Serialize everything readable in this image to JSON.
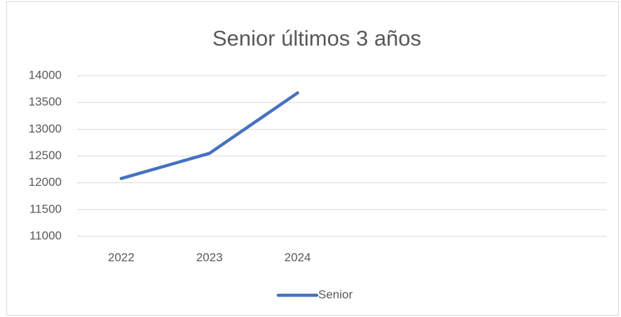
{
  "chart_data": {
    "type": "line",
    "title": "Senior últimos 3 años",
    "categories": [
      "2022",
      "2023",
      "2024",
      null,
      null,
      null
    ],
    "series": [
      {
        "name": "Senior",
        "color": "#4472c4",
        "values": [
          12080,
          12550,
          13680,
          null,
          null,
          null
        ]
      }
    ],
    "ylim": [
      11000,
      14000
    ],
    "yticks": [
      11000,
      11500,
      12000,
      12500,
      13000,
      13500,
      14000
    ],
    "grid": true,
    "legend": "bottom"
  }
}
